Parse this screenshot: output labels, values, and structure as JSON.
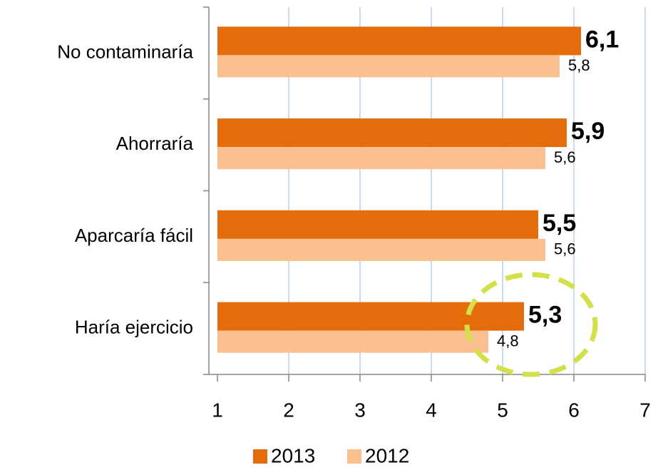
{
  "chart_data": {
    "type": "barh",
    "categories": [
      "No contaminaría",
      "Ahorraría",
      "Aparcaría fácil",
      "Haría ejercicio"
    ],
    "series": [
      {
        "name": "2013",
        "color": "#e46c0a",
        "values": [
          6.1,
          5.9,
          5.5,
          5.3
        ],
        "value_labels": [
          "6,1",
          "5,9",
          "5,5",
          "5,3"
        ]
      },
      {
        "name": "2012",
        "color": "#fac090",
        "values": [
          5.8,
          5.6,
          5.6,
          4.8
        ],
        "value_labels": [
          "5,8",
          "5,6",
          "5,6",
          "4,8"
        ]
      }
    ],
    "xlim": [
      1,
      7
    ],
    "xticks": [
      1,
      2,
      3,
      4,
      5,
      6,
      7
    ],
    "grid": true,
    "legend": "bottom"
  }
}
